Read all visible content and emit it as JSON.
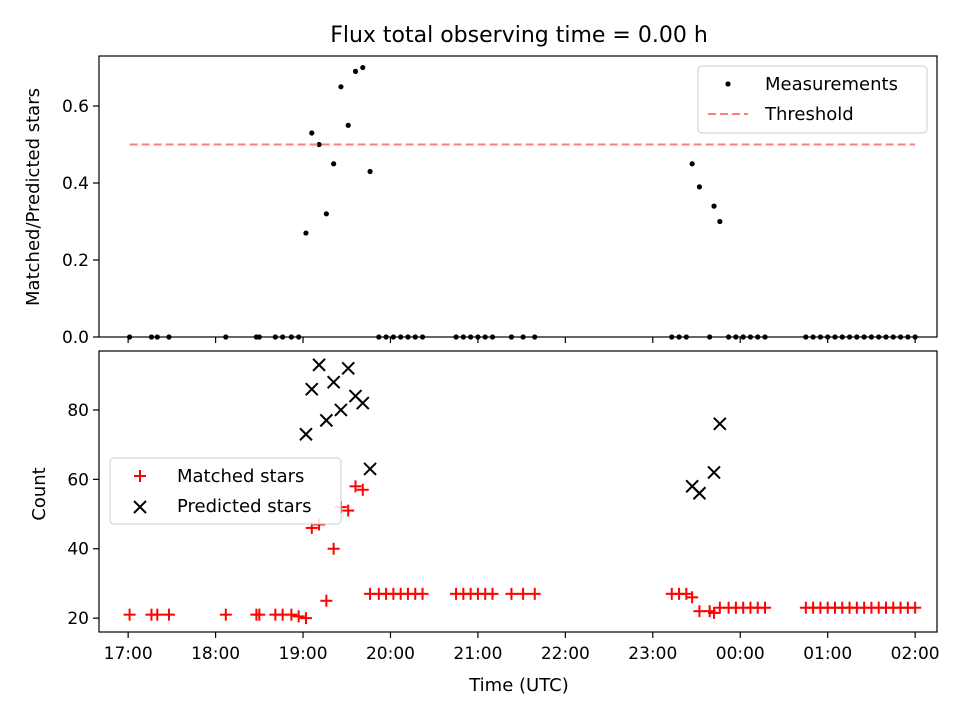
{
  "chart_data": [
    {
      "type": "scatter",
      "title": "Flux total observing time = 0.00 h",
      "ylabel": "Matched/Predicted stars",
      "xlabel": "",
      "xlim": [
        "16:40",
        "02:15"
      ],
      "ylim": [
        0.0,
        0.73
      ],
      "x_ticks": [
        "17:00",
        "18:00",
        "19:00",
        "20:00",
        "21:00",
        "22:00",
        "23:00",
        "00:00",
        "01:00",
        "02:00"
      ],
      "y_ticks": [
        "0.0",
        "0.2",
        "0.4",
        "0.6"
      ],
      "y_tick_values": [
        0.0,
        0.2,
        0.4,
        0.6
      ],
      "legend_position": "top-right",
      "series": [
        {
          "name": "Measurements",
          "style": "dot",
          "color": "#000000",
          "points": [
            [
              "17:01",
              0.0
            ],
            [
              "17:16",
              0.0
            ],
            [
              "17:20",
              0.0
            ],
            [
              "17:28",
              0.0
            ],
            [
              "18:07",
              0.0
            ],
            [
              "18:28",
              0.0
            ],
            [
              "18:30",
              0.0
            ],
            [
              "18:41",
              0.0
            ],
            [
              "18:46",
              0.0
            ],
            [
              "18:52",
              0.0
            ],
            [
              "18:57",
              0.0
            ],
            [
              "19:02",
              0.27
            ],
            [
              "19:06",
              0.53
            ],
            [
              "19:11",
              0.5
            ],
            [
              "19:16",
              0.32
            ],
            [
              "19:21",
              0.45
            ],
            [
              "19:26",
              0.65
            ],
            [
              "19:31",
              0.55
            ],
            [
              "19:36",
              0.69
            ],
            [
              "19:41",
              0.7
            ],
            [
              "19:46",
              0.43
            ],
            [
              "19:52",
              0.0
            ],
            [
              "19:57",
              0.0
            ],
            [
              "20:02",
              0.0
            ],
            [
              "20:07",
              0.0
            ],
            [
              "20:12",
              0.0
            ],
            [
              "20:17",
              0.0
            ],
            [
              "20:22",
              0.0
            ],
            [
              "20:45",
              0.0
            ],
            [
              "20:50",
              0.0
            ],
            [
              "20:55",
              0.0
            ],
            [
              "21:00",
              0.0
            ],
            [
              "21:05",
              0.0
            ],
            [
              "21:10",
              0.0
            ],
            [
              "21:23",
              0.0
            ],
            [
              "21:31",
              0.0
            ],
            [
              "21:39",
              0.0
            ],
            [
              "23:13",
              0.0
            ],
            [
              "23:18",
              0.0
            ],
            [
              "23:23",
              0.0
            ],
            [
              "23:27",
              0.45
            ],
            [
              "23:32",
              0.39
            ],
            [
              "23:39",
              0.0
            ],
            [
              "23:42",
              0.34
            ],
            [
              "23:46",
              0.3
            ],
            [
              "23:52",
              0.0
            ],
            [
              "23:57",
              0.0
            ],
            [
              "00:02",
              0.0
            ],
            [
              "00:07",
              0.0
            ],
            [
              "00:12",
              0.0
            ],
            [
              "00:17",
              0.0
            ],
            [
              "00:45",
              0.0
            ],
            [
              "00:50",
              0.0
            ],
            [
              "00:55",
              0.0
            ],
            [
              "01:00",
              0.0
            ],
            [
              "01:05",
              0.0
            ],
            [
              "01:10",
              0.0
            ],
            [
              "01:15",
              0.0
            ],
            [
              "01:20",
              0.0
            ],
            [
              "01:25",
              0.0
            ],
            [
              "01:30",
              0.0
            ],
            [
              "01:35",
              0.0
            ],
            [
              "01:40",
              0.0
            ],
            [
              "01:45",
              0.0
            ],
            [
              "01:50",
              0.0
            ],
            [
              "01:55",
              0.0
            ],
            [
              "02:00",
              0.0
            ]
          ]
        },
        {
          "name": "Threshold",
          "style": "dashed-line",
          "color": "#ff7f7f",
          "points": [
            [
              "17:01",
              0.5
            ],
            [
              "02:00",
              0.5
            ]
          ]
        }
      ]
    },
    {
      "type": "scatter",
      "title": "",
      "ylabel": "Count",
      "xlabel": "Time (UTC)",
      "xlim": [
        "16:40",
        "02:15"
      ],
      "ylim": [
        16,
        97
      ],
      "x_ticks": [
        "17:00",
        "18:00",
        "19:00",
        "20:00",
        "21:00",
        "22:00",
        "23:00",
        "00:00",
        "01:00",
        "02:00"
      ],
      "y_ticks": [
        "20",
        "40",
        "60",
        "80"
      ],
      "y_tick_values": [
        20,
        40,
        60,
        80
      ],
      "legend_position": "center-left",
      "series": [
        {
          "name": "Matched stars",
          "style": "plus",
          "color": "#ff0000",
          "points": [
            [
              "17:01",
              21
            ],
            [
              "17:16",
              21
            ],
            [
              "17:20",
              21
            ],
            [
              "17:28",
              21
            ],
            [
              "18:07",
              21
            ],
            [
              "18:28",
              21
            ],
            [
              "18:30",
              21
            ],
            [
              "18:41",
              21
            ],
            [
              "18:46",
              21
            ],
            [
              "18:52",
              21
            ],
            [
              "18:57",
              20.5
            ],
            [
              "19:02",
              20
            ],
            [
              "19:06",
              46
            ],
            [
              "19:11",
              47
            ],
            [
              "19:16",
              25
            ],
            [
              "19:21",
              40
            ],
            [
              "19:26",
              52
            ],
            [
              "19:31",
              51
            ],
            [
              "19:36",
              58
            ],
            [
              "19:41",
              57
            ],
            [
              "19:46",
              27
            ],
            [
              "19:52",
              27
            ],
            [
              "19:57",
              27
            ],
            [
              "20:02",
              27
            ],
            [
              "20:07",
              27
            ],
            [
              "20:12",
              27
            ],
            [
              "20:17",
              27
            ],
            [
              "20:22",
              27
            ],
            [
              "20:45",
              27
            ],
            [
              "20:50",
              27
            ],
            [
              "20:55",
              27
            ],
            [
              "21:00",
              27
            ],
            [
              "21:05",
              27
            ],
            [
              "21:10",
              27
            ],
            [
              "21:23",
              27
            ],
            [
              "21:31",
              27
            ],
            [
              "21:39",
              27
            ],
            [
              "23:13",
              27
            ],
            [
              "23:18",
              27
            ],
            [
              "23:23",
              27
            ],
            [
              "23:27",
              26
            ],
            [
              "23:32",
              22
            ],
            [
              "23:39",
              22
            ],
            [
              "23:42",
              21.5
            ],
            [
              "23:46",
              23
            ],
            [
              "23:52",
              23
            ],
            [
              "23:57",
              23
            ],
            [
              "00:02",
              23
            ],
            [
              "00:07",
              23
            ],
            [
              "00:12",
              23
            ],
            [
              "00:17",
              23
            ],
            [
              "00:45",
              23
            ],
            [
              "00:50",
              23
            ],
            [
              "00:55",
              23
            ],
            [
              "01:00",
              23
            ],
            [
              "01:05",
              23
            ],
            [
              "01:10",
              23
            ],
            [
              "01:15",
              23
            ],
            [
              "01:20",
              23
            ],
            [
              "01:25",
              23
            ],
            [
              "01:30",
              23
            ],
            [
              "01:35",
              23
            ],
            [
              "01:40",
              23
            ],
            [
              "01:45",
              23
            ],
            [
              "01:50",
              23
            ],
            [
              "01:55",
              23
            ],
            [
              "02:00",
              23
            ]
          ]
        },
        {
          "name": "Predicted stars",
          "style": "x",
          "color": "#000000",
          "points": [
            [
              "19:02",
              73
            ],
            [
              "19:06",
              86
            ],
            [
              "19:11",
              93
            ],
            [
              "19:16",
              77
            ],
            [
              "19:21",
              88
            ],
            [
              "19:26",
              80
            ],
            [
              "19:31",
              92
            ],
            [
              "19:36",
              84
            ],
            [
              "19:41",
              82
            ],
            [
              "19:46",
              63
            ],
            [
              "23:27",
              58
            ],
            [
              "23:32",
              56
            ],
            [
              "23:42",
              62
            ],
            [
              "23:46",
              76
            ]
          ]
        }
      ]
    }
  ]
}
